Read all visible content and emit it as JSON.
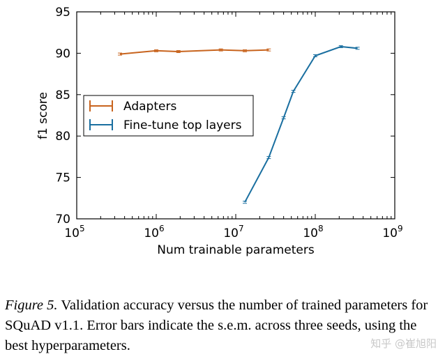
{
  "chart_data": {
    "type": "line",
    "xscale": "log",
    "xlim": [
      100000,
      1000000000
    ],
    "ylim": [
      70,
      95
    ],
    "xlabel": "Num trainable parameters",
    "ylabel": "f1 score",
    "grid": false,
    "legend_position": "center-left",
    "x_tick_labels": [
      "10^5",
      "10^6",
      "10^7",
      "10^8",
      "10^9"
    ],
    "y_tick_labels": [
      "70",
      "75",
      "80",
      "85",
      "90",
      "95"
    ],
    "series": [
      {
        "name": "Adapters",
        "color": "#c8641e",
        "x": [
          350000,
          1000000,
          1900000,
          6500000,
          13000000,
          26000000
        ],
        "y": [
          89.9,
          90.3,
          90.2,
          90.4,
          90.3,
          90.4
        ]
      },
      {
        "name": "Fine-tune top layers",
        "color": "#1a6fa0",
        "x": [
          13000000,
          26000000,
          40000000,
          53000000,
          100000000,
          210000000,
          340000000
        ],
        "y": [
          72.0,
          77.4,
          82.2,
          85.4,
          89.7,
          90.8,
          90.6
        ]
      }
    ]
  },
  "caption": {
    "label": "Figure 5.",
    "text": "Validation accuracy versus the number of trained parameters for SQuAD v1.1. Error bars indicate the s.e.m. across three seeds, using the best hyperparameters."
  },
  "watermark": "知乎 @崔旭阳"
}
